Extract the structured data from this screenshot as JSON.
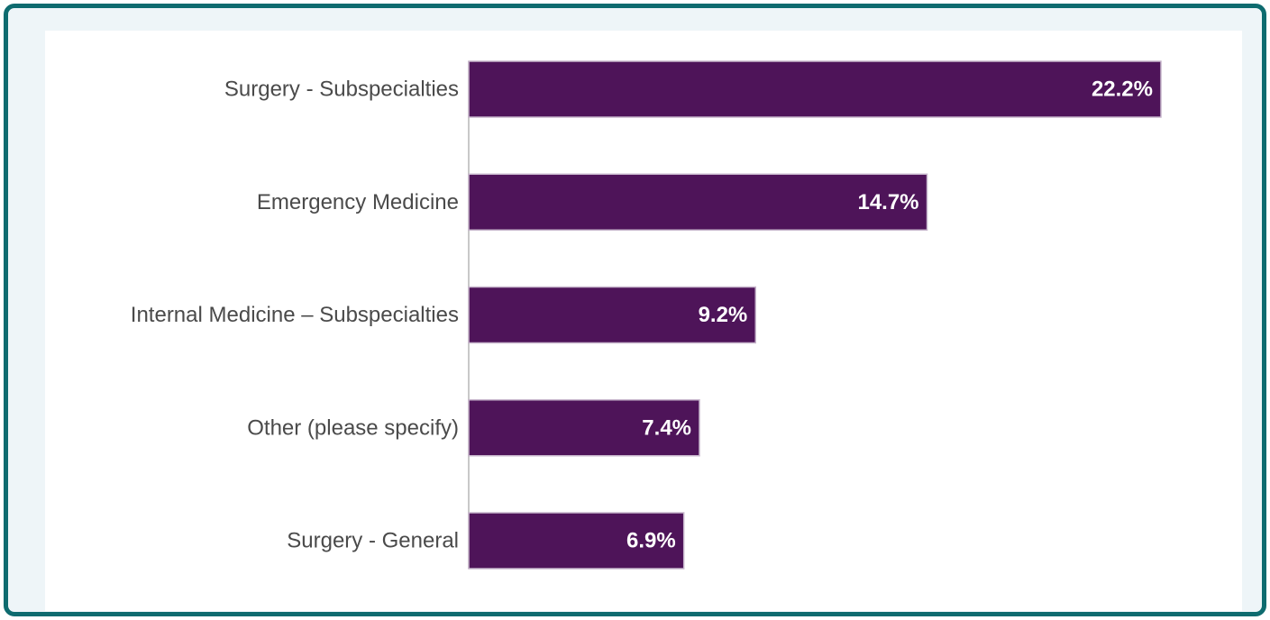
{
  "chart_data": {
    "type": "bar",
    "orientation": "horizontal",
    "categories": [
      "Surgery - Subspecialties",
      "Emergency Medicine",
      "Internal Medicine – Subspecialties",
      "Other (please specify)",
      "Surgery - General"
    ],
    "values": [
      22.2,
      14.7,
      9.2,
      7.4,
      6.9
    ],
    "value_labels": [
      "22.2%",
      "14.7%",
      "9.2%",
      "7.4%",
      "6.9%"
    ],
    "title": "",
    "xlabel": "",
    "ylabel": "",
    "xlim": [
      0,
      22.2
    ],
    "grid": false,
    "legend": "none",
    "colors": {
      "bar": "#4e1459",
      "bar_edge": "#c7b6cc",
      "axis": "#c8c8c8",
      "frame": "#0e6b6f",
      "frame_fill": "#eef5f8"
    }
  }
}
